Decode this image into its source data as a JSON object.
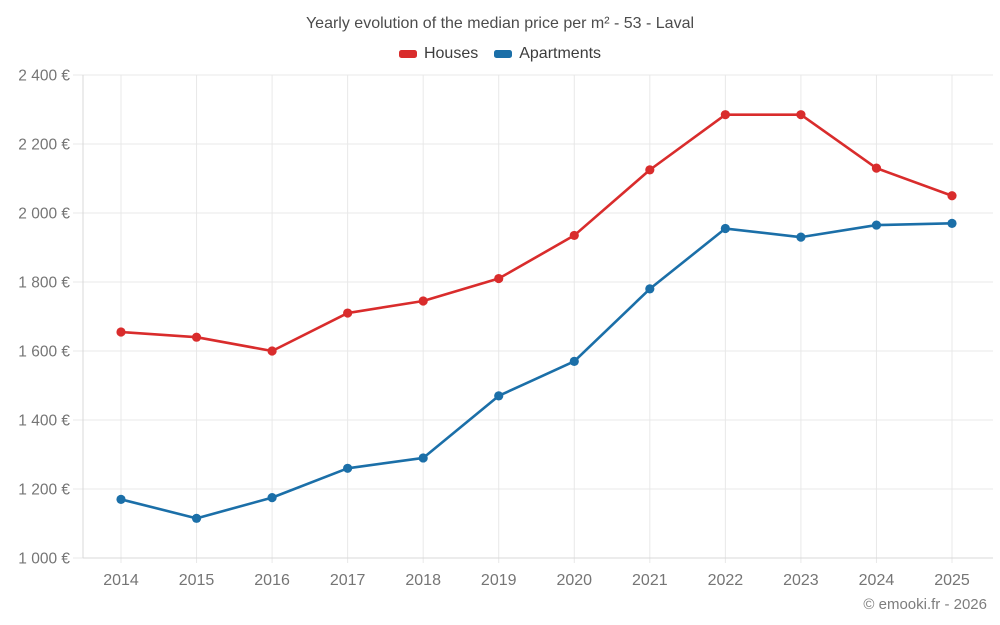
{
  "header": {
    "title": "Yearly evolution of the median price per m² - 53 - Laval"
  },
  "legend": {
    "items": [
      {
        "label": "Houses",
        "color": "#d92c2c"
      },
      {
        "label": "Apartments",
        "color": "#1b6fa8"
      }
    ]
  },
  "footer": {
    "credit": "© emooki.fr - 2026"
  },
  "chart_data": {
    "type": "line",
    "title": "Yearly evolution of the median price per m² - 53 - Laval",
    "categories": [
      "2014",
      "2015",
      "2016",
      "2017",
      "2018",
      "2019",
      "2020",
      "2021",
      "2022",
      "2023",
      "2024",
      "2025"
    ],
    "series": [
      {
        "name": "Houses",
        "color": "#d92c2c",
        "values": [
          1655,
          1640,
          1600,
          1710,
          1745,
          1810,
          1935,
          2125,
          2285,
          2285,
          2130,
          2050
        ]
      },
      {
        "name": "Apartments",
        "color": "#1b6fa8",
        "values": [
          1170,
          1115,
          1175,
          1260,
          1290,
          1470,
          1570,
          1780,
          1955,
          1930,
          1965,
          1970
        ]
      }
    ],
    "xlabel": "",
    "ylabel": "",
    "ylim": [
      1000,
      2400
    ],
    "ytick_step": 200,
    "ytick_labels": [
      "1 000 €",
      "1 200 €",
      "1 400 €",
      "1 600 €",
      "1 800 €",
      "2 000 €",
      "2 200 €",
      "2 400 €"
    ],
    "grid": true,
    "legend_position": "top",
    "marker": "circle",
    "grid_color": "#e8e8e8",
    "axis_color": "#d9d9d9",
    "tick_color": "#757575"
  }
}
